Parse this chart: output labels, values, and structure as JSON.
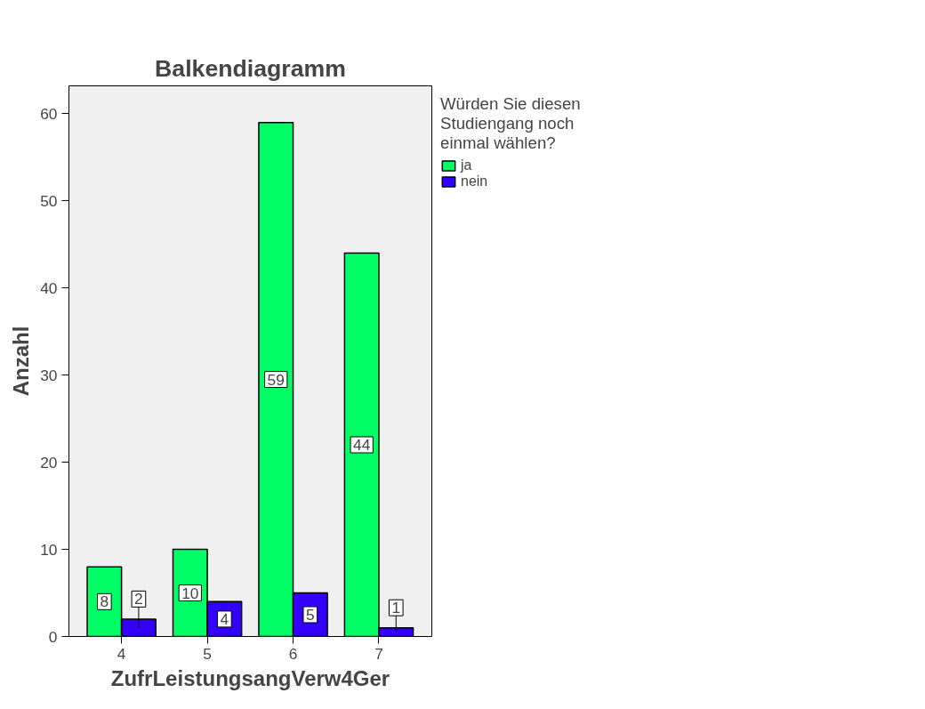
{
  "chart_data": {
    "type": "bar",
    "title": "Balkendiagramm",
    "xlabel": "ZufrLeistungsangVerw4Ger",
    "ylabel": "Anzahl",
    "legend_title": "Würden Sie diesen Studiengang noch einmal wählen?",
    "categories": [
      "4",
      "5",
      "6",
      "7"
    ],
    "series": [
      {
        "name": "ja",
        "color": "#00ff66",
        "values": [
          8,
          10,
          59,
          44
        ]
      },
      {
        "name": "nein",
        "color": "#3300ff",
        "values": [
          2,
          4,
          5,
          1
        ]
      }
    ],
    "ylim": [
      0,
      63.2
    ],
    "yticks": [
      0,
      10,
      20,
      30,
      40,
      50,
      60
    ],
    "grid": false,
    "legend": "top right",
    "data_labels": true
  }
}
